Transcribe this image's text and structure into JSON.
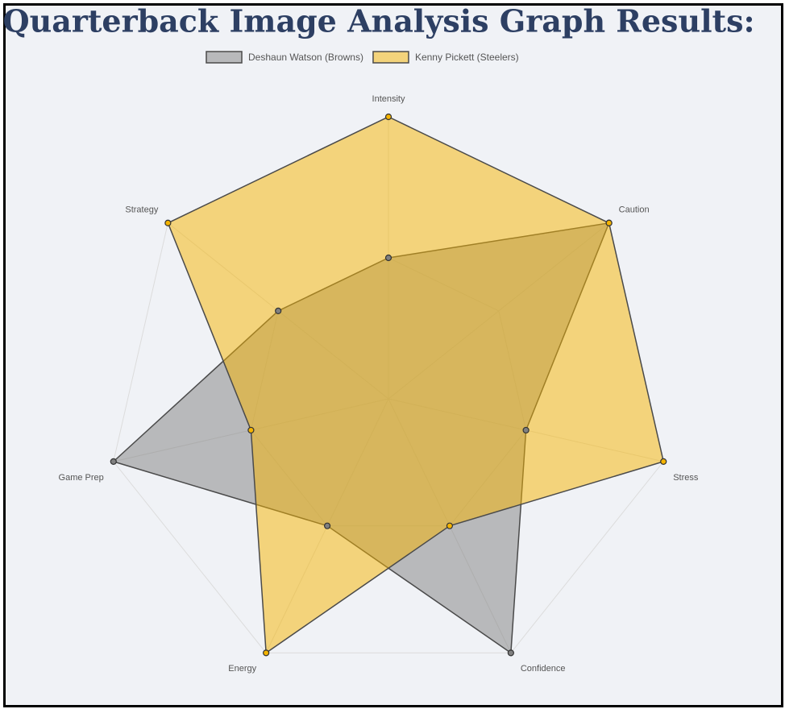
{
  "chart_data": {
    "type": "radar",
    "title": "Quarterback Image Analysis Graph Results:",
    "categories": [
      "Intensity",
      "Caution",
      "Stress",
      "Confidence",
      "Energy",
      "Game Prep",
      "Strategy"
    ],
    "series": [
      {
        "name": "Deshaun Watson (Browns)",
        "color": "#808080",
        "values": [
          0.5,
          1,
          0.5,
          1,
          0.5,
          1,
          0.5
        ]
      },
      {
        "name": "Kenny Pickett (Steelers)",
        "color": "#f5b400",
        "values": [
          1,
          1,
          1,
          0.5,
          1,
          0.5,
          1
        ]
      }
    ],
    "rlim": [
      0,
      1
    ],
    "rticks": [
      0.5,
      1
    ],
    "grid": true,
    "legend": "top"
  }
}
